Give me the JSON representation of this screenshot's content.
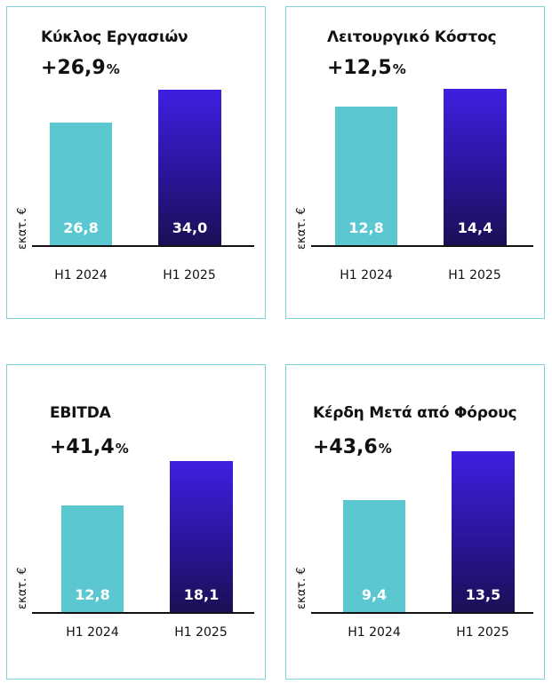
{
  "chart_data": [
    {
      "type": "bar",
      "title": "Κύκλος Εργασιών",
      "growth": "+26,9",
      "growth_unit": "%",
      "ylabel": "εκατ. €",
      "categories": [
        "H1 2024",
        "H1 2025"
      ],
      "values": [
        26.8,
        34.0
      ],
      "value_labels": [
        "26,8",
        "34,0"
      ],
      "colors": [
        "#5bc8d1",
        "#3f1fe0"
      ]
    },
    {
      "type": "bar",
      "title": "Λειτουργικό Κόστος",
      "growth": "+12,5",
      "growth_unit": "%",
      "ylabel": "εκατ. €",
      "categories": [
        "H1 2024",
        "H1 2025"
      ],
      "values": [
        12.8,
        14.4
      ],
      "value_labels": [
        "12,8",
        "14,4"
      ],
      "colors": [
        "#5bc8d1",
        "#3f1fe0"
      ]
    },
    {
      "type": "bar",
      "title": "EBITDA",
      "growth": "+41,4",
      "growth_unit": "%",
      "ylabel": "εκατ. €",
      "categories": [
        "H1 2024",
        "H1 2025"
      ],
      "values": [
        12.8,
        18.1
      ],
      "value_labels": [
        "12,8",
        "18,1"
      ],
      "colors": [
        "#5bc8d1",
        "#3f1fe0"
      ]
    },
    {
      "type": "bar",
      "title": "Κέρδη Μετά από Φόρους",
      "growth": "+43,6",
      "growth_unit": "%",
      "ylabel": "εκατ. €",
      "categories": [
        "H1 2024",
        "H1 2025"
      ],
      "values": [
        9.4,
        13.5
      ],
      "value_labels": [
        "9,4",
        "13,5"
      ],
      "colors": [
        "#5bc8d1",
        "#3f1fe0"
      ]
    }
  ]
}
